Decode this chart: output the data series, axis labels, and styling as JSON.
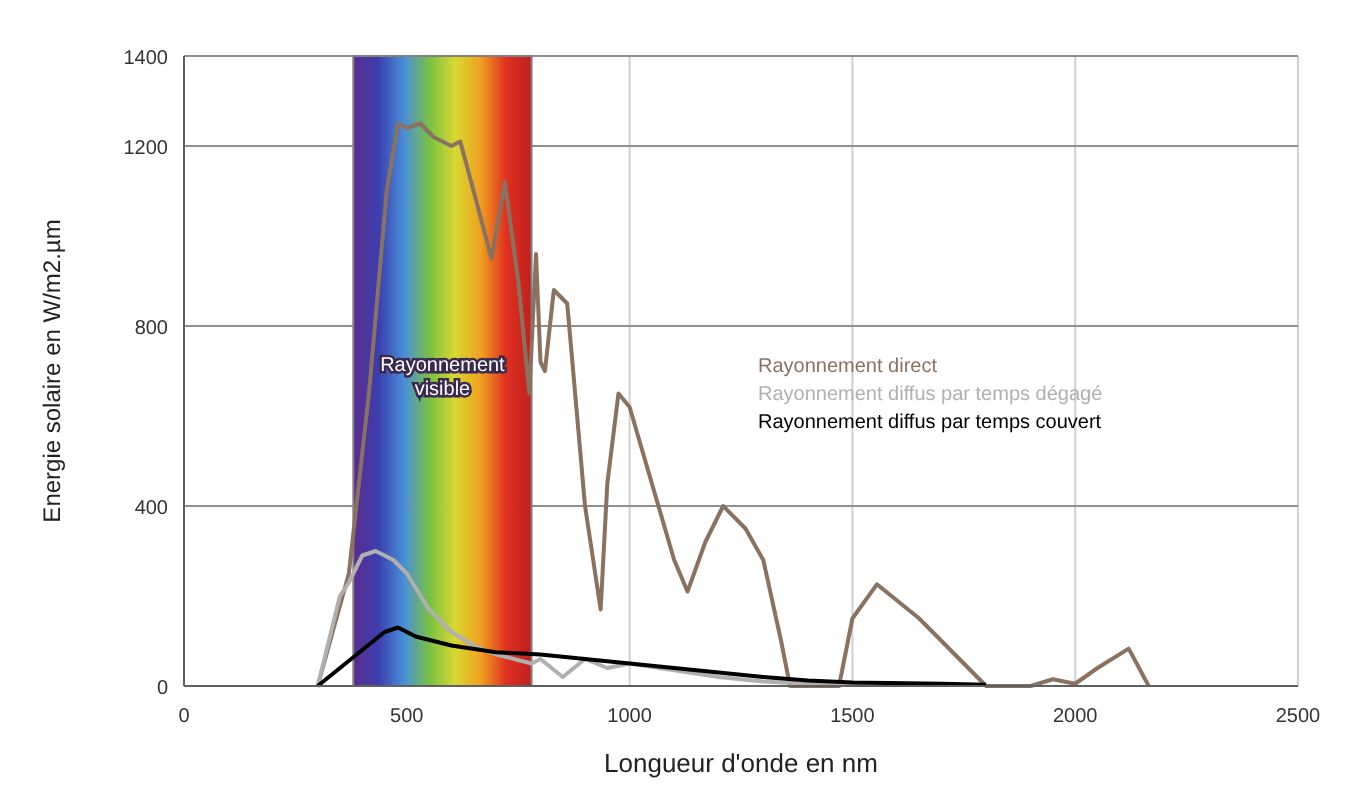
{
  "chart_data": {
    "type": "line",
    "xlabel": "Longueur d'onde en nm",
    "ylabel": "Energie solaire en W/m2.µm",
    "xlim": [
      0,
      2500
    ],
    "xticks": [
      0,
      500,
      1000,
      1500,
      2000,
      2500
    ],
    "ylim": [
      0,
      1400
    ],
    "yticks": [
      0,
      400,
      800,
      1200,
      1400
    ],
    "grid": true,
    "legend": "right",
    "marker": "none",
    "line_style": "solid",
    "bands": [
      {
        "axis": "x",
        "from": 380,
        "to": 780,
        "label": "Rayonnement visible"
      }
    ],
    "series": [
      {
        "name": "Rayonnement direct",
        "color": "#8a7260",
        "x": [
          300,
          370,
          415,
          455,
          480,
          500,
          530,
          560,
          600,
          620,
          650,
          690,
          720,
          750,
          775,
          790,
          800,
          810,
          830,
          860,
          900,
          935,
          950,
          975,
          1000,
          1050,
          1100,
          1130,
          1170,
          1210,
          1260,
          1300,
          1340,
          1360,
          1470,
          1500,
          1555,
          1650,
          1800,
          1900,
          1950,
          2000,
          2050,
          2120,
          2165
        ],
        "values": [
          0,
          250,
          650,
          1100,
          1250,
          1240,
          1250,
          1220,
          1200,
          1210,
          1100,
          950,
          1120,
          900,
          650,
          960,
          720,
          700,
          880,
          850,
          400,
          170,
          450,
          650,
          620,
          450,
          280,
          210,
          320,
          400,
          350,
          280,
          100,
          0,
          0,
          150,
          226,
          150,
          0,
          0,
          15,
          5,
          40,
          83,
          0
        ]
      },
      {
        "name": "Rayonnement diffus par temps dégagé",
        "color": "#b0b0b0",
        "x": [
          300,
          350,
          370,
          400,
          430,
          470,
          500,
          550,
          600,
          650,
          700,
          780,
          800,
          850,
          900,
          950,
          1000,
          1100,
          1200,
          1300,
          1400,
          1500,
          1800
        ],
        "values": [
          0,
          200,
          230,
          290,
          300,
          280,
          250,
          170,
          120,
          90,
          70,
          50,
          60,
          20,
          60,
          40,
          50,
          35,
          20,
          10,
          5,
          3,
          2
        ]
      },
      {
        "name": "Rayonnement diffus par temps couvert",
        "color": "#000000",
        "x": [
          300,
          350,
          400,
          450,
          480,
          520,
          600,
          700,
          800,
          900,
          1000,
          1100,
          1200,
          1300,
          1400,
          1500,
          1700,
          1800
        ],
        "values": [
          0,
          40,
          80,
          120,
          130,
          110,
          90,
          75,
          70,
          60,
          50,
          40,
          30,
          20,
          12,
          8,
          5,
          3
        ]
      }
    ]
  }
}
